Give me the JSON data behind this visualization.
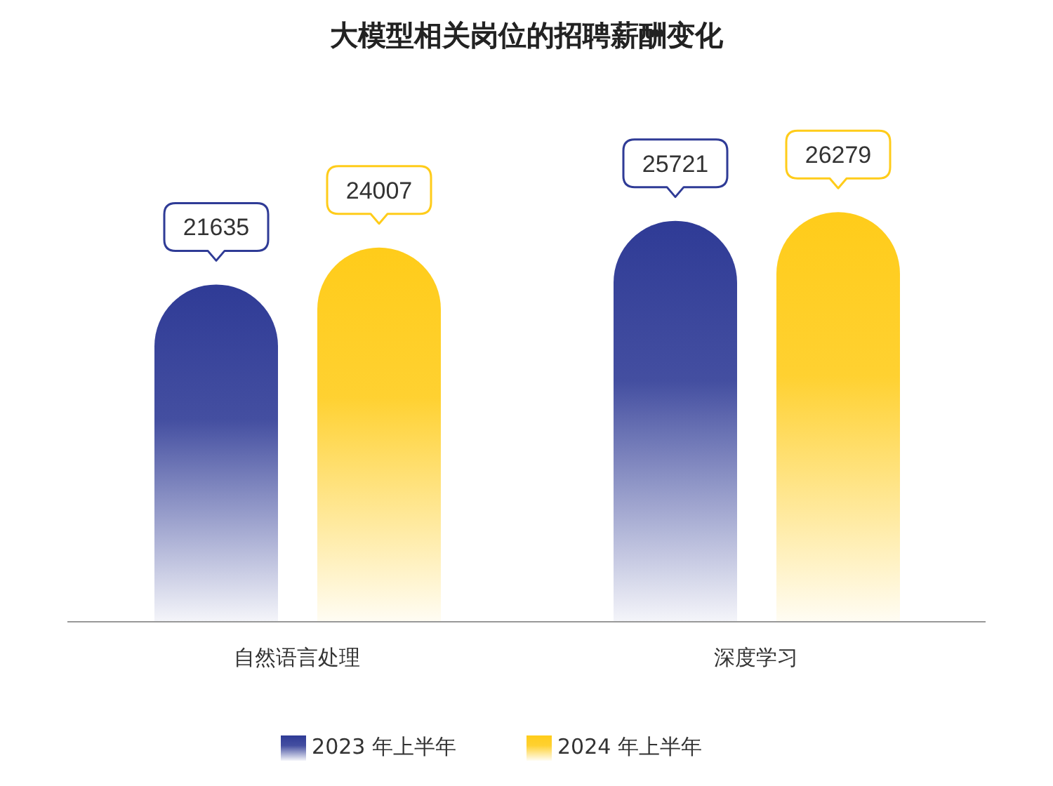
{
  "chart_data": {
    "type": "bar",
    "title": "大模型相关岗位的招聘薪酬变化",
    "categories": [
      "自然语言处理",
      "深度学习"
    ],
    "series": [
      {
        "name": "2023 年上半年",
        "color": "#2f3b96",
        "values": [
          21635,
          25721
        ]
      },
      {
        "name": "2024 年上半年",
        "color": "#ffcc1a",
        "values": [
          24007,
          26279
        ]
      }
    ],
    "data_labels": true,
    "legend": "bottom",
    "grid": false
  }
}
